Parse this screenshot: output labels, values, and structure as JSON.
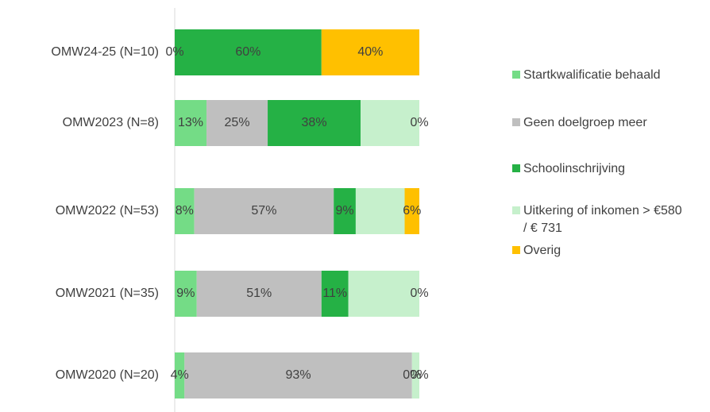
{
  "chart_data": {
    "type": "stacked_bar_horizontal",
    "categories": [
      "OMW24-25 (N=10)",
      "OMW2023 (N=8)",
      "OMW2022 (N=53)",
      "OMW2021 (N=35)",
      "OMW2020 (N=20)"
    ],
    "xlim": [
      0,
      100
    ],
    "series": [
      {
        "name": "Startkwalificatie behaald",
        "color": "#74dc86",
        "values": [
          0,
          13,
          8,
          9,
          4
        ],
        "value_labels": [
          "0%",
          "13%",
          "8%",
          "9%",
          "4%"
        ]
      },
      {
        "name": "Geen doelgroep meer",
        "color": "#bfbfbf",
        "values": [
          0,
          25,
          57,
          51,
          93
        ],
        "value_labels": [
          null,
          "25%",
          "57%",
          "51%",
          "93%"
        ]
      },
      {
        "name": "Schoolinschrijving",
        "color": "#25b145",
        "values": [
          60,
          38,
          9,
          11,
          0
        ],
        "value_labels": [
          "60%",
          "38%",
          "9%",
          "11%",
          "0%"
        ]
      },
      {
        "name": "Uitkering of inkomen > €580 / € 731",
        "color": "#c6f0cc",
        "values": [
          0,
          24,
          20,
          29,
          3
        ]
      },
      {
        "name": "Overig",
        "color": "#ffc000",
        "values": [
          40,
          0,
          6,
          0,
          0
        ],
        "value_labels": [
          "40%",
          "0%",
          "6%",
          "0%",
          "0%"
        ]
      }
    ],
    "legend": "right"
  }
}
